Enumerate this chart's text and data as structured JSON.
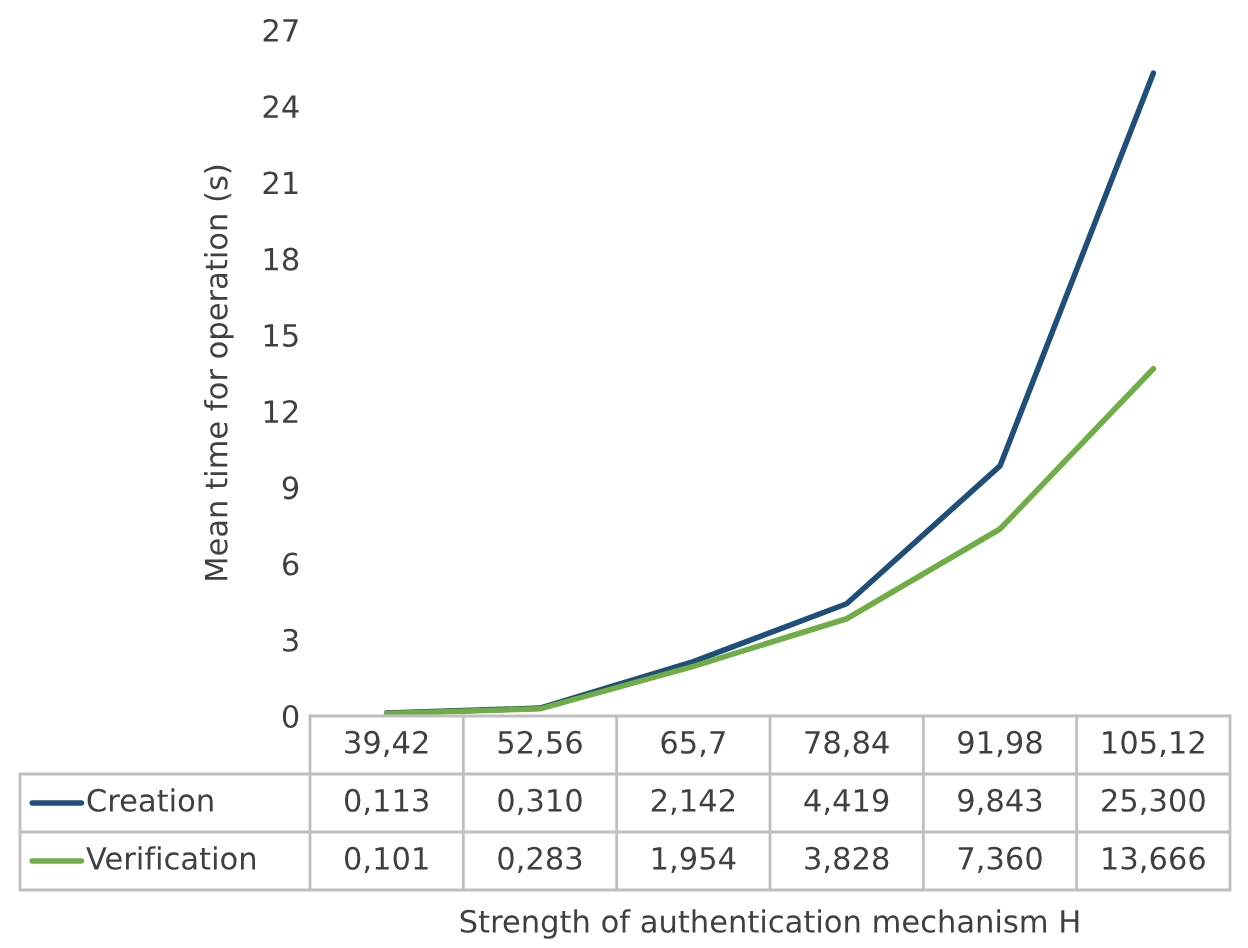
{
  "chart_data": {
    "type": "line",
    "xlabel": "Strength of authentication mechanism H",
    "ylabel": "Mean time for operation (s)",
    "categories": [
      "39,42",
      "52,56",
      "65,7",
      "78,84",
      "91,98",
      "105,12"
    ],
    "series": [
      {
        "name": "Creation",
        "color": "#1f4e79",
        "values": [
          0.113,
          0.31,
          2.142,
          4.419,
          9.843,
          25.3
        ],
        "value_labels": [
          "0,113",
          "0,310",
          "2,142",
          "4,419",
          "9,843",
          "25,300"
        ]
      },
      {
        "name": "Verification",
        "color": "#70ad47",
        "values": [
          0.101,
          0.283,
          1.954,
          3.828,
          7.36,
          13.666
        ],
        "value_labels": [
          "0,101",
          "0,283",
          "1,954",
          "3,828",
          "7,360",
          "13,666"
        ]
      }
    ],
    "ylim": [
      0,
      27
    ],
    "yticks": [
      0,
      3,
      6,
      9,
      12,
      15,
      18,
      21,
      24,
      27
    ],
    "grid": false,
    "legend": "bottom",
    "marker": "none",
    "line_style": "solid"
  }
}
